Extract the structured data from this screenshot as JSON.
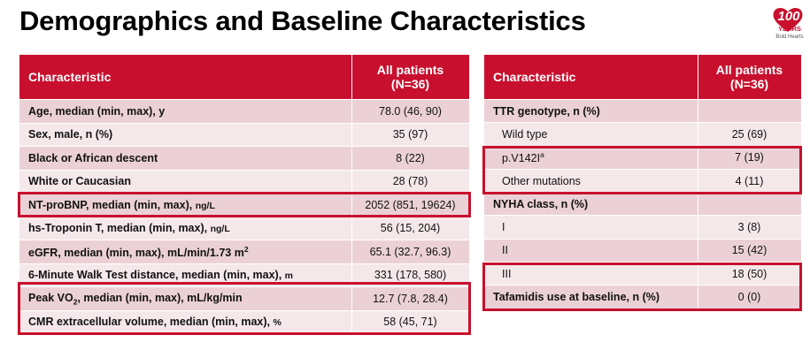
{
  "header": {
    "title": "Demographics and Baseline Characteristics"
  },
  "logo": {
    "number": "100",
    "word": "YEARS",
    "tagline": "Bold Hearts"
  },
  "left_table": {
    "columns": [
      "Characteristic",
      "All patients (N=36)"
    ],
    "rows": [
      {
        "label": "Age, median (min, max), y",
        "value": "78.0 (46, 90)"
      },
      {
        "label": "Sex, male, n (%)",
        "value": "35 (97)"
      },
      {
        "label": "Black or African descent",
        "value": "8 (22)"
      },
      {
        "label": "White or Caucasian",
        "value": "28 (78)"
      },
      {
        "label": [
          "NT-proBNP, median (min, max), ",
          "ng/L"
        ],
        "value": "2052 (851, 19624)"
      },
      {
        "label": [
          "hs-Troponin T, median (min, max), ",
          "ng/L"
        ],
        "value": "56 (15, 204)"
      },
      {
        "label": [
          "eGFR, median (min, max), mL/min/1.73 m",
          "2"
        ],
        "value": "65.1 (32.7, 96.3)"
      },
      {
        "label": [
          "6-Minute Walk Test distance, median (min, max), ",
          "m"
        ],
        "value": "331 (178, 580)"
      },
      {
        "label": [
          "Peak VO",
          "2",
          ", median (min, max), mL/kg/min"
        ],
        "value": "12.7 (7.8, 28.4)"
      },
      {
        "label": [
          "CMR extracellular volume, median (min, max), ",
          "%"
        ],
        "value": "58 (45, 71)"
      }
    ]
  },
  "right_table": {
    "columns": [
      "Characteristic",
      "All patients (N=36)"
    ],
    "rows": [
      {
        "label": "TTR genotype, n (%)"
      },
      {
        "label": "Wild type",
        "value": "25 (69)"
      },
      {
        "label": [
          "p.V142I",
          "a"
        ],
        "value": "7 (19)"
      },
      {
        "label": "Other mutations",
        "value": "4 (11)"
      },
      {
        "label": "NYHA class, n (%)"
      },
      {
        "label": "I",
        "value": "3 (8)"
      },
      {
        "label": "II",
        "value": "15 (42)"
      },
      {
        "label": "III",
        "value": "18 (50)"
      },
      {
        "label": "Tafamidis use at baseline, n (%)",
        "value": "0 (0)"
      }
    ]
  }
}
